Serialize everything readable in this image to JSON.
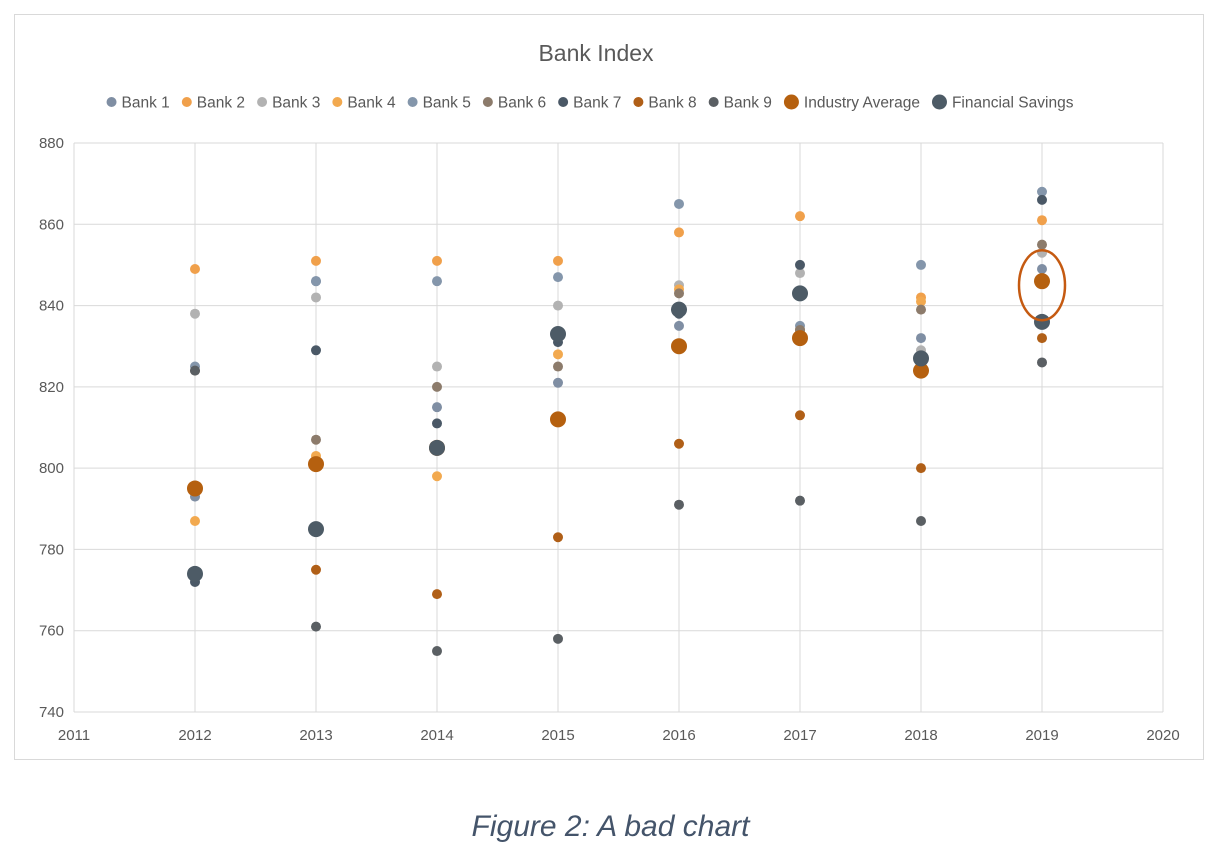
{
  "caption": "Figure 2: A bad chart",
  "chart_data": {
    "type": "scatter",
    "title": "Bank Index",
    "xlabel": "",
    "ylabel": "",
    "xlim": [
      2011,
      2020
    ],
    "ylim": [
      740,
      880
    ],
    "xticks": [
      2011,
      2012,
      2013,
      2014,
      2015,
      2016,
      2017,
      2018,
      2019,
      2020
    ],
    "yticks": [
      740,
      760,
      780,
      800,
      820,
      840,
      860,
      880
    ],
    "grid": true,
    "legend_position": "top",
    "highlight": {
      "x": 2019,
      "y": 845,
      "color": "#c55a11"
    },
    "x": [
      2012,
      2013,
      2014,
      2015,
      2016,
      2017,
      2018,
      2019
    ],
    "series": [
      {
        "name": "Bank 1",
        "color": "#7f8ea3",
        "size": "small",
        "values": [
          793,
          846,
          815,
          821,
          835,
          834,
          832,
          849
        ]
      },
      {
        "name": "Bank 2",
        "color": "#f0a04b",
        "size": "small",
        "values": [
          849,
          851,
          851,
          851,
          858,
          862,
          842,
          861
        ]
      },
      {
        "name": "Bank 3",
        "color": "#b2b2b2",
        "size": "small",
        "values": [
          838,
          842,
          825,
          840,
          845,
          848,
          829,
          853
        ]
      },
      {
        "name": "Bank 4",
        "color": "#f2a94f",
        "size": "small",
        "values": [
          787,
          803,
          798,
          828,
          844,
          834,
          841,
          836
        ]
      },
      {
        "name": "Bank 5",
        "color": "#8496ab",
        "size": "small",
        "values": [
          825,
          846,
          846,
          847,
          865,
          835,
          850,
          868
        ]
      },
      {
        "name": "Bank 6",
        "color": "#8c7b6b",
        "size": "small",
        "values": [
          824,
          807,
          820,
          825,
          843,
          834,
          839,
          855
        ]
      },
      {
        "name": "Bank 7",
        "color": "#4a5866",
        "size": "small",
        "values": [
          772,
          829,
          811,
          831,
          838,
          850,
          826,
          866
        ]
      },
      {
        "name": "Bank 8",
        "color": "#b05f17",
        "size": "small",
        "values": [
          795,
          775,
          769,
          783,
          806,
          813,
          800,
          832
        ]
      },
      {
        "name": "Bank 9",
        "color": "#5a5f63",
        "size": "small",
        "values": [
          824,
          761,
          755,
          758,
          791,
          792,
          787,
          826
        ]
      },
      {
        "name": "Industry Average",
        "color": "#b5600f",
        "size": "large",
        "values": [
          795,
          801,
          805,
          812,
          830,
          832,
          824,
          846
        ]
      },
      {
        "name": "Financial Savings",
        "color": "#4d5b66",
        "size": "large",
        "values": [
          774,
          785,
          805,
          833,
          839,
          843,
          827,
          836
        ]
      }
    ]
  }
}
